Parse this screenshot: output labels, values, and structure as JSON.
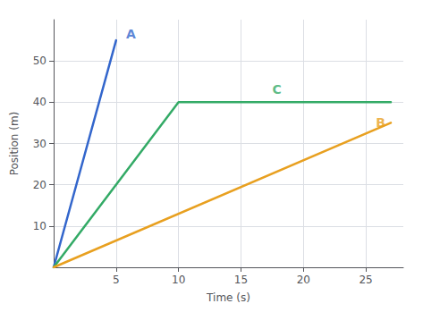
{
  "chart_data": {
    "type": "line",
    "xlabel": "Time (s)",
    "ylabel": "Position (m)",
    "xlim": [
      0,
      28
    ],
    "ylim": [
      0,
      60
    ],
    "xticks": [
      5,
      10,
      15,
      20,
      25
    ],
    "yticks": [
      10,
      20,
      30,
      40,
      50
    ],
    "grid": true,
    "series": [
      {
        "name": "A",
        "color": "#3366cc",
        "x": [
          0,
          5
        ],
        "values": [
          0,
          55
        ]
      },
      {
        "name": "C",
        "color": "#33aa66",
        "x": [
          0,
          10,
          27
        ],
        "values": [
          0,
          40,
          40
        ]
      },
      {
        "name": "B",
        "color": "#e8a020",
        "x": [
          0,
          27
        ],
        "values": [
          0,
          35
        ]
      }
    ],
    "annotations": [
      {
        "text": "A",
        "x": 5.8,
        "y": 55
      },
      {
        "text": "C",
        "x": 17.5,
        "y": 41.5
      },
      {
        "text": "B",
        "x": 25.8,
        "y": 33.5
      }
    ]
  }
}
